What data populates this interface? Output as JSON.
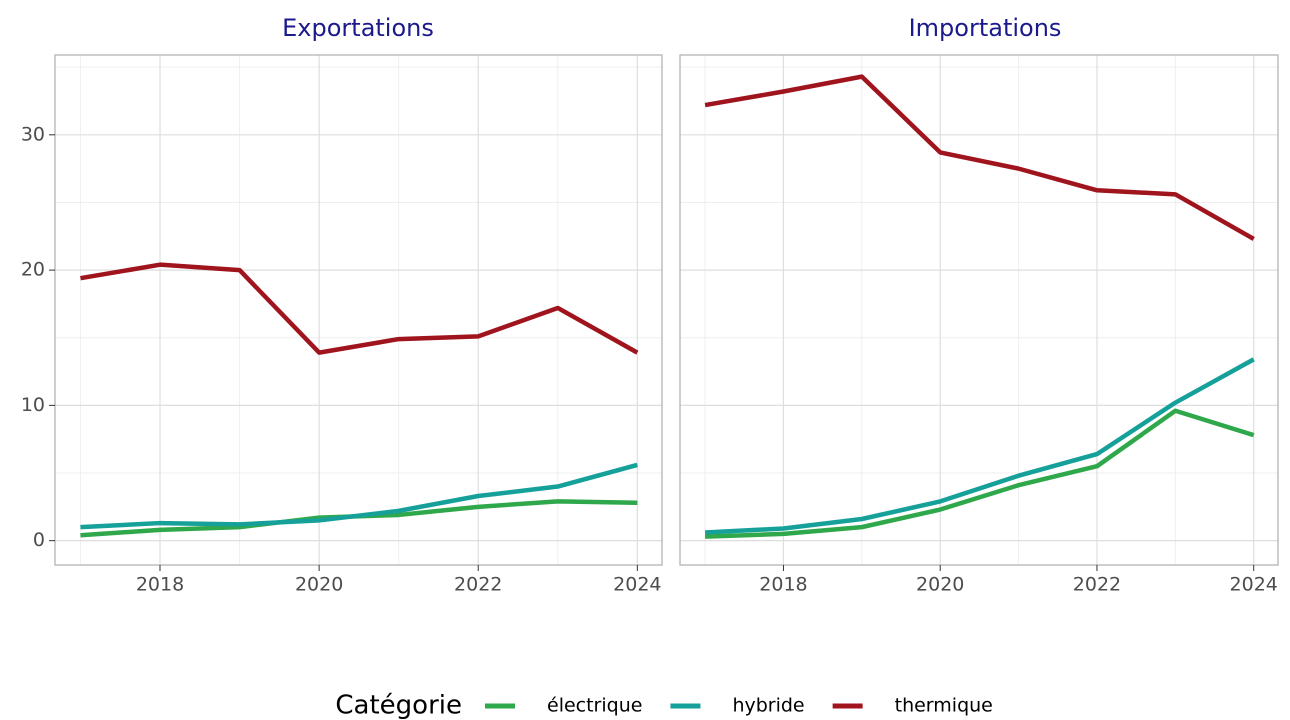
{
  "legend": {
    "title": "Catégorie"
  },
  "chart_data": [
    {
      "type": "line",
      "title": "Exportations",
      "x": [
        2017,
        2018,
        2019,
        2020,
        2021,
        2022,
        2023,
        2024
      ],
      "xlim": [
        2016.68,
        2024.31
      ],
      "xticks": [
        2018,
        2020,
        2022,
        2024
      ],
      "minor_xticks": [
        2017,
        2019,
        2021,
        2023
      ],
      "ylim": [
        -1.8,
        35.9
      ],
      "yticks": [
        0,
        10,
        20,
        30
      ],
      "minor_yticks": [
        5,
        15,
        25,
        35
      ],
      "grid": true,
      "series": [
        {
          "name": "électrique",
          "color": "#2ea84a",
          "values": [
            0.4,
            0.8,
            1.0,
            1.7,
            1.9,
            2.5,
            2.9,
            2.8
          ]
        },
        {
          "name": "hybride",
          "color": "#16a09a",
          "values": [
            1.0,
            1.3,
            1.2,
            1.5,
            2.2,
            3.3,
            4.0,
            5.6
          ]
        },
        {
          "name": "thermique",
          "color": "#a0141e",
          "values": [
            19.4,
            20.4,
            20.0,
            13.9,
            14.9,
            15.1,
            17.2,
            13.9
          ]
        }
      ]
    },
    {
      "type": "line",
      "title": "Importations",
      "x": [
        2017,
        2018,
        2019,
        2020,
        2021,
        2022,
        2023,
        2024
      ],
      "xlim": [
        2016.68,
        2024.31
      ],
      "xticks": [
        2018,
        2020,
        2022,
        2024
      ],
      "minor_xticks": [
        2017,
        2019,
        2021,
        2023
      ],
      "ylim": [
        -1.8,
        35.9
      ],
      "minor_yticks": [
        5,
        15,
        25,
        35
      ],
      "grid": true,
      "series": [
        {
          "color": "#2ea84a",
          "values": [
            0.3,
            0.5,
            1.0,
            2.3,
            4.1,
            5.5,
            9.6,
            7.8
          ]
        },
        {
          "color": "#16a09a",
          "values": [
            0.6,
            0.9,
            1.6,
            2.9,
            4.8,
            6.4,
            10.2,
            13.4
          ]
        },
        {
          "color": "#a0141e",
          "values": [
            32.2,
            33.2,
            34.3,
            28.7,
            27.5,
            25.9,
            25.6,
            22.3
          ]
        }
      ]
    }
  ]
}
